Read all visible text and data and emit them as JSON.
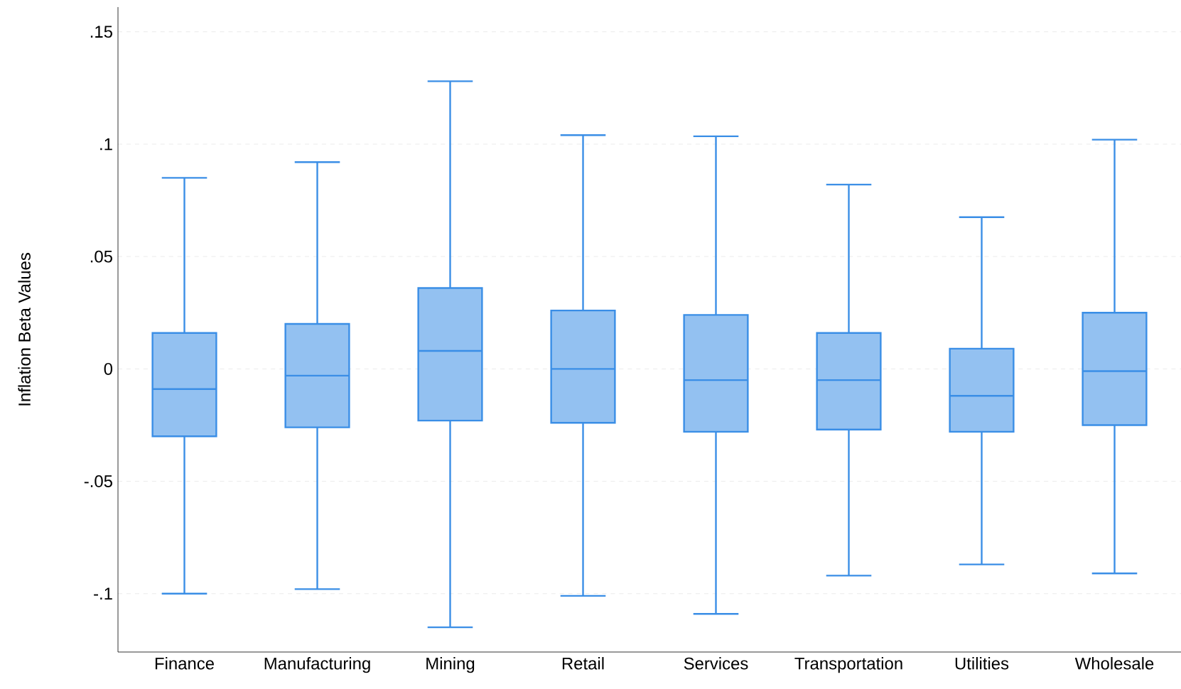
{
  "chart_data": {
    "type": "box",
    "ylabel": "Inflation Beta Values",
    "categories": [
      "Finance",
      "Manufacturing",
      "Mining",
      "Retail",
      "Services",
      "Transportation",
      "Utilities",
      "Wholesale"
    ],
    "series": [
      {
        "color": "#3a8ee6",
        "boxes": [
          {
            "low": -0.1,
            "q1": -0.03,
            "median": -0.009,
            "q3": 0.016,
            "high": 0.085
          },
          {
            "low": -0.098,
            "q1": -0.026,
            "median": -0.003,
            "q3": 0.02,
            "high": 0.092
          },
          {
            "low": -0.115,
            "q1": -0.023,
            "median": 0.008,
            "q3": 0.036,
            "high": 0.128
          },
          {
            "low": -0.101,
            "q1": -0.024,
            "median": 0.0,
            "q3": 0.026,
            "high": 0.104
          },
          {
            "low": -0.109,
            "q1": -0.028,
            "median": -0.005,
            "q3": 0.024,
            "high": 0.1035
          },
          {
            "low": -0.092,
            "q1": -0.027,
            "median": -0.005,
            "q3": 0.016,
            "high": 0.082
          },
          {
            "low": -0.087,
            "q1": -0.028,
            "median": -0.012,
            "q3": 0.009,
            "high": 0.0675
          },
          {
            "low": -0.091,
            "q1": -0.025,
            "median": -0.001,
            "q3": 0.025,
            "high": 0.102
          }
        ]
      }
    ],
    "ylim": [
      -0.126,
      0.161
    ],
    "yticks": [
      {
        "value": -0.1,
        "label": "-.1"
      },
      {
        "value": -0.05,
        "label": "-.05"
      },
      {
        "value": 0,
        "label": "0"
      },
      {
        "value": 0.05,
        "label": ".05"
      },
      {
        "value": 0.1,
        "label": ".1"
      },
      {
        "value": 0.15,
        "label": ".15"
      }
    ],
    "grid": "y"
  }
}
